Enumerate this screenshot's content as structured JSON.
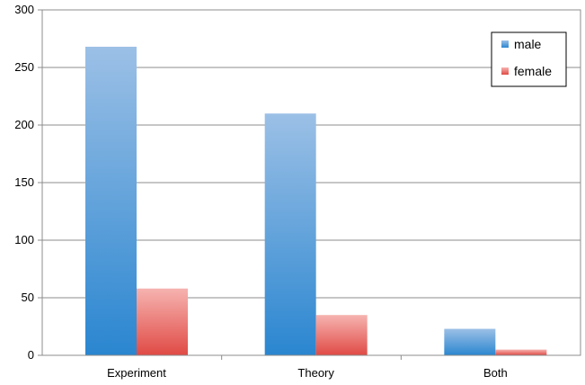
{
  "chart_data": {
    "type": "bar",
    "title": "",
    "xlabel": "",
    "ylabel": "",
    "categories": [
      "Experiment",
      "Theory",
      "Both"
    ],
    "series": [
      {
        "name": "male",
        "values": [
          268,
          210,
          23
        ],
        "color_top": "#9cc0e6",
        "color_bottom": "#2a86d0"
      },
      {
        "name": "female",
        "values": [
          58,
          35,
          5
        ],
        "color_top": "#f6b3b0",
        "color_bottom": "#e04a45"
      }
    ],
    "ylim": [
      0,
      300
    ],
    "yticks": [
      "0",
      "50",
      "100",
      "150",
      "200",
      "250",
      "300"
    ],
    "ytick_values": [
      0,
      50,
      100,
      150,
      200,
      250,
      300
    ],
    "grid": true,
    "legend_position": "top-right"
  }
}
